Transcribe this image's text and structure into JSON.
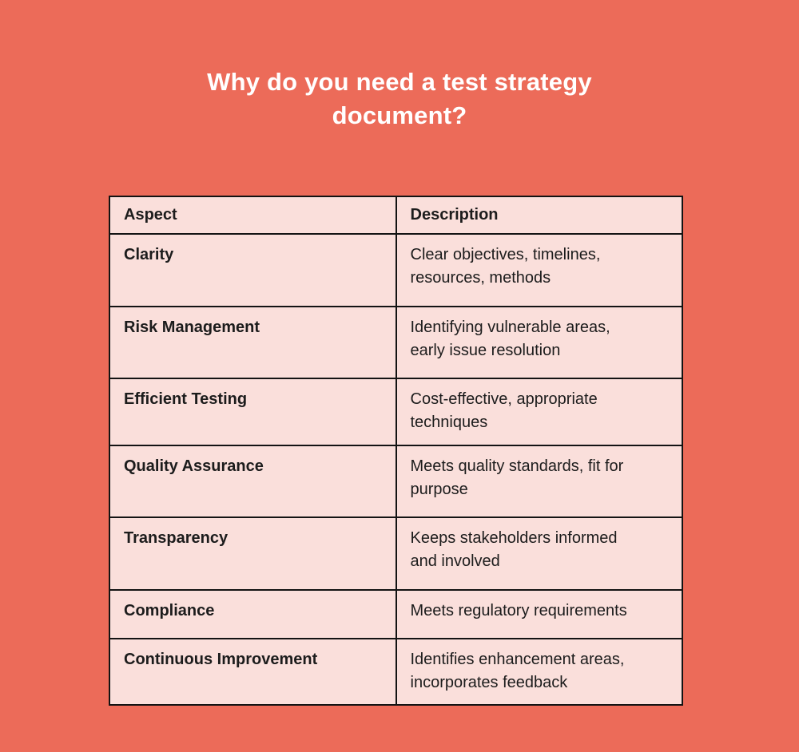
{
  "title": {
    "line1": "Why do you need a test strategy",
    "line2": "document?"
  },
  "table": {
    "headers": {
      "aspect": "Aspect",
      "description": "Description"
    },
    "rows": [
      {
        "aspect": "Clarity",
        "description": "Clear objectives, timelines, resources, methods"
      },
      {
        "aspect": "Risk Management",
        "description": "Identifying vulnerable areas, early issue resolution"
      },
      {
        "aspect": "Efficient Testing",
        "description": "Cost-effective, appropriate techniques"
      },
      {
        "aspect": "Quality Assurance",
        "description": "Meets quality standards, fit for purpose"
      },
      {
        "aspect": "Transparency",
        "description": "Keeps stakeholders informed and involved"
      },
      {
        "aspect": "Compliance",
        "description": "Meets regulatory requirements"
      },
      {
        "aspect": "Continuous Improvement",
        "description": "Identifies enhancement areas, incorporates feedback"
      }
    ]
  },
  "colors": {
    "background": "#EC6B59",
    "table_background": "#FADFDB",
    "border": "#131313",
    "text": "#1C1C1C",
    "title_text": "#FFFFFF"
  }
}
